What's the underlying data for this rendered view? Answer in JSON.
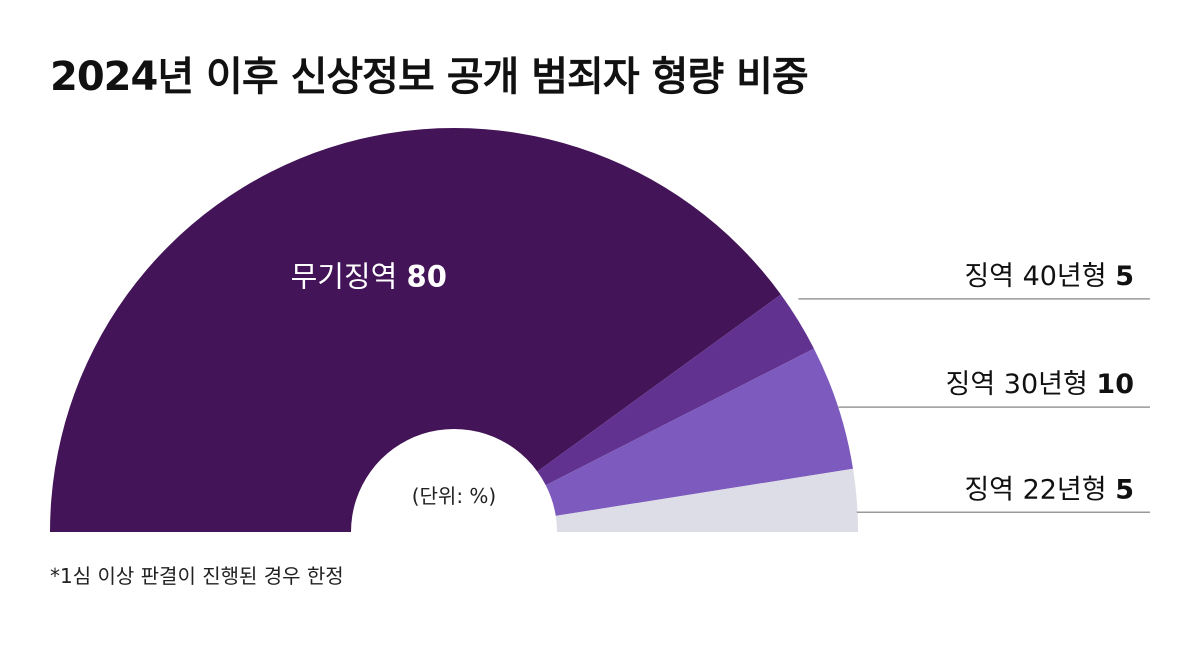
{
  "chart_data": {
    "type": "pie",
    "title": "2024년 이후 신상정보 공개 범죄자 형량 비중",
    "unit_label": "(단위: %)",
    "footnote": "*1심 이상 판결이 진행된 경우 한정",
    "slices": [
      {
        "label": "무기징역",
        "value": 80,
        "color": "#431457"
      },
      {
        "label": "징역 40년형",
        "value": 5,
        "color": "#623290"
      },
      {
        "label": "징역 30년형",
        "value": 10,
        "color": "#7d5bbe"
      },
      {
        "label": "징역 22년형",
        "value": 5,
        "color": "#dcdde6"
      }
    ]
  }
}
